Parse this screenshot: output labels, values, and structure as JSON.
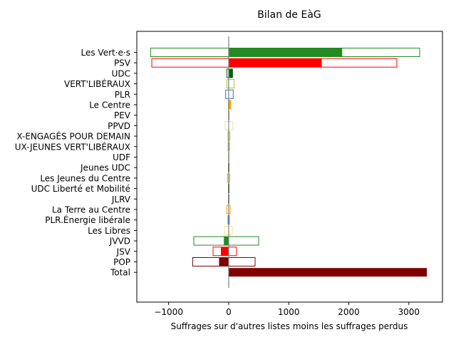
{
  "chart_data": {
    "type": "bar",
    "orientation": "horizontal",
    "title": "Bilan de EàG",
    "xlabel": "Suffrages sur d'autres listes moins les suffrages perdus",
    "ylabel": "",
    "xlim": [
      -1530,
      3560
    ],
    "xticks": [
      -1000,
      0,
      1000,
      2000,
      3000
    ],
    "xtick_labels": [
      "−1000",
      "0",
      "1000",
      "2000",
      "3000"
    ],
    "grid": false,
    "legend": "none",
    "zero_line_color": "#808080",
    "categories": [
      "Les Vert·e·s",
      "PSV",
      "UDC",
      "VERT'LIBÉRAUX",
      "PLR",
      "Le Centre",
      "PEV",
      "PPVD",
      "X-ENGAGÉS POUR DEMAIN",
      "UX-JEUNES VERT'LIBÉRAUX",
      "UDF",
      "Jeunes UDC",
      "Les Jeunes du Centre",
      "UDC Liberté et Mobilité",
      "JLRV",
      "La Terre au Centre",
      "PLR.Énergie libérale",
      "Les Libres",
      "JVVD",
      "JSV",
      "POP",
      "Total"
    ],
    "colors": [
      "#228b22",
      "#ff0000",
      "#006400",
      "#9acd32",
      "#4169e1",
      "#ffa500",
      "#c0c0c0",
      "#f0e68c",
      "#9acd32",
      "#9acd32",
      "#c0c0c0",
      "#556b2f",
      "#ffa500",
      "#2f4f4f",
      "#6a7fb5",
      "#ffa500",
      "#4169e1",
      "#f0e68c",
      "#228b22",
      "#ff0000",
      "#800000",
      "#800000"
    ],
    "series": [
      {
        "role": "outline",
        "negative": [
          -1300,
          -1280,
          -30,
          -30,
          -50,
          -5,
          -5,
          -60,
          -10,
          -10,
          -5,
          -5,
          -20,
          -5,
          -5,
          -30,
          -10,
          -70,
          -580,
          -260,
          -600,
          0
        ],
        "positive": [
          3180,
          2800,
          60,
          90,
          75,
          35,
          10,
          70,
          20,
          15,
          5,
          5,
          15,
          5,
          5,
          25,
          10,
          60,
          500,
          130,
          440,
          0
        ]
      },
      {
        "role": "filled",
        "values": [
          1890,
          1550,
          70,
          0,
          0,
          30,
          0,
          0,
          0,
          0,
          0,
          0,
          0,
          0,
          0,
          0,
          0,
          0,
          -80,
          -130,
          -160,
          3300
        ]
      }
    ]
  }
}
